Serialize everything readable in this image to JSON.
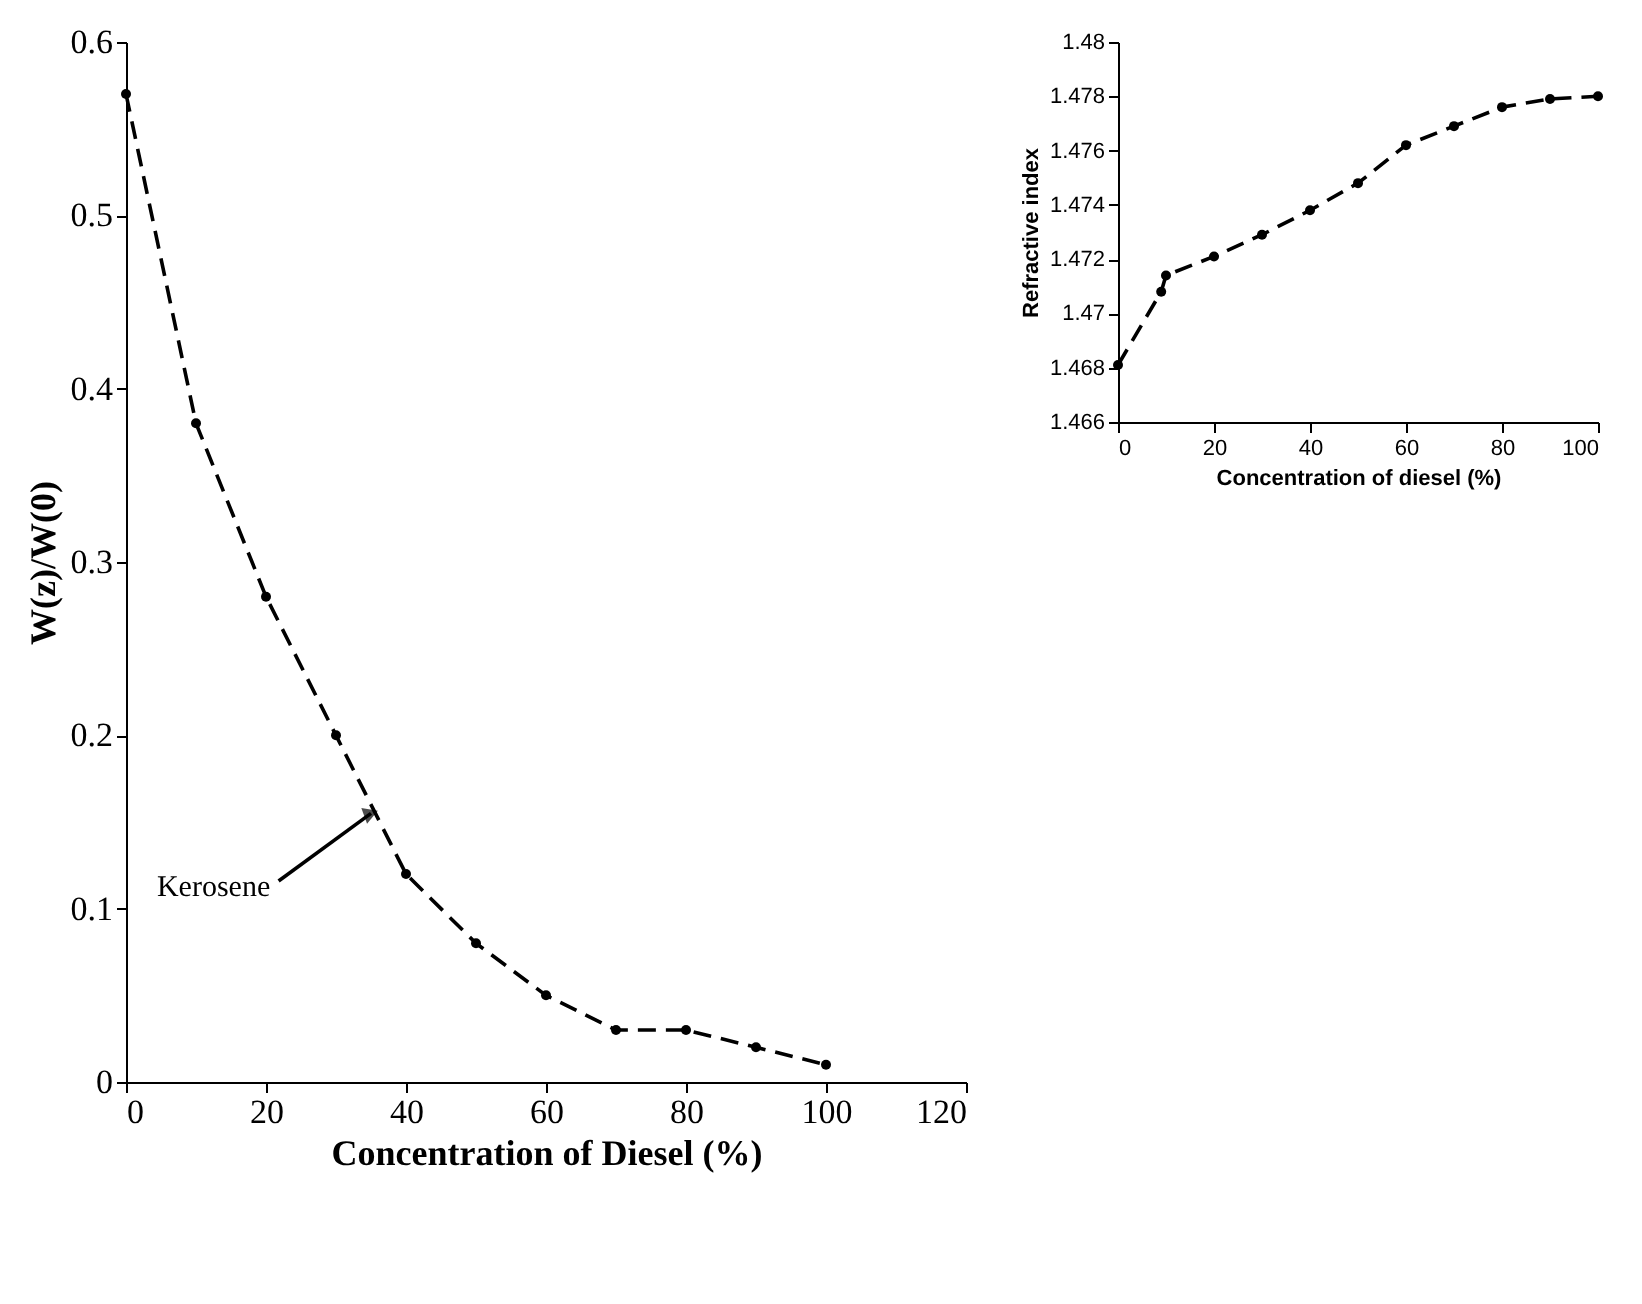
{
  "chart_data": [
    {
      "type": "line",
      "xlabel": "Concentration of Diesel (%)",
      "ylabel": "W(z)/W(0)",
      "x": [
        0,
        10,
        20,
        30,
        40,
        50,
        60,
        70,
        80,
        90,
        100
      ],
      "series": [
        {
          "color": "#000000",
          "values": [
            0.57,
            0.38,
            0.28,
            0.2,
            0.12,
            0.08,
            0.05,
            0.03,
            0.03,
            0.02,
            0.01
          ]
        }
      ],
      "xlim": [
        0,
        120
      ],
      "xticks": [
        0,
        20,
        40,
        60,
        80,
        100,
        120
      ],
      "ylim": [
        0,
        0.6
      ],
      "yticks": [
        0,
        0.1,
        0.2,
        0.3,
        0.4,
        0.5,
        0.6
      ],
      "grid": false,
      "marker": "circle",
      "line_style": "dashed",
      "annotations": [
        {
          "text": "Kerosene",
          "x": 35,
          "y": 0.155
        }
      ]
    },
    {
      "type": "line",
      "xlabel": "Concentration of diesel (%)",
      "ylabel": "Refractive index",
      "x": [
        0,
        9,
        10,
        20,
        30,
        40,
        50,
        60,
        70,
        80,
        90,
        100
      ],
      "series": [
        {
          "color": "#000000",
          "values": [
            1.4681,
            1.4708,
            1.4714,
            1.4721,
            1.4729,
            1.4738,
            1.4748,
            1.4762,
            1.4769,
            1.4776,
            1.4779,
            1.478
          ]
        }
      ],
      "xlim": [
        0,
        100
      ],
      "xticks": [
        0,
        20,
        40,
        60,
        80,
        100
      ],
      "ylim": [
        1.466,
        1.48
      ],
      "yticks": [
        1.466,
        1.468,
        1.47,
        1.472,
        1.474,
        1.476,
        1.478,
        1.48
      ],
      "grid": false,
      "marker": "circle",
      "line_style": "dashed"
    }
  ]
}
